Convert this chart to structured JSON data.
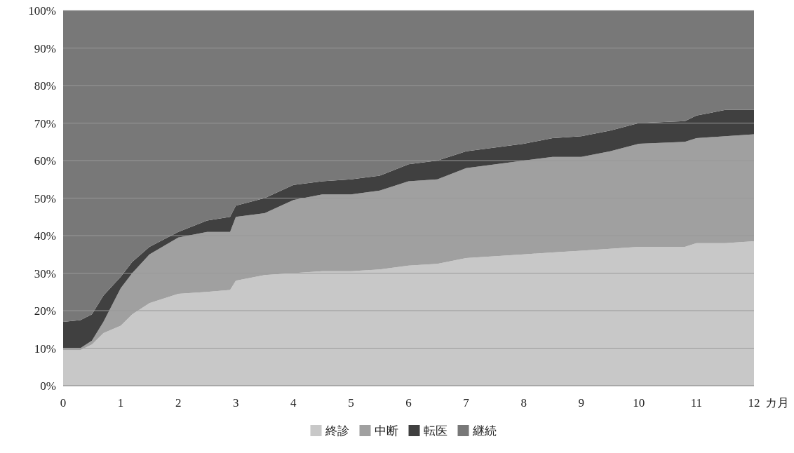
{
  "chart_data": {
    "type": "area",
    "stacked": true,
    "xlabel": "カ月",
    "x": [
      0,
      0.3,
      0.5,
      0.7,
      1,
      1.2,
      1.5,
      2,
      2.5,
      2.9,
      3,
      3.5,
      4,
      4.5,
      5,
      5.5,
      6,
      6.5,
      7,
      8,
      8.5,
      9,
      9.5,
      10,
      10.8,
      11,
      11.5,
      12
    ],
    "series": [
      {
        "name": "終診",
        "color": "#c8c8c8",
        "values": [
          9.5,
          9.5,
          11,
          14,
          16,
          19,
          22,
          24.5,
          25,
          25.5,
          28,
          29.5,
          30,
          30.5,
          30.5,
          31,
          32,
          32.5,
          34,
          35,
          35.5,
          36,
          36.5,
          37,
          37,
          38,
          38,
          38.5
        ]
      },
      {
        "name": "中断",
        "color": "#a0a0a0",
        "values": [
          0.5,
          0.5,
          1,
          3,
          10,
          11,
          13,
          15,
          16,
          15.5,
          17,
          16.5,
          19.5,
          20.5,
          20.5,
          21,
          22.5,
          22.5,
          24,
          25,
          25.5,
          25,
          26,
          27.5,
          28,
          28,
          28.5,
          28.5
        ]
      },
      {
        "name": "転医",
        "color": "#404040",
        "values": [
          7,
          7.5,
          7,
          7,
          3,
          3,
          2,
          1.5,
          3,
          4,
          3,
          4,
          4,
          3.5,
          4,
          4,
          4.5,
          5,
          4.5,
          4.5,
          5,
          5.5,
          5.5,
          5.5,
          5.5,
          6,
          7,
          6.5
        ]
      },
      {
        "name": "継続",
        "color": "#787878",
        "values": [
          83,
          82.5,
          81,
          76,
          71,
          67,
          63,
          59,
          56,
          55,
          52,
          50,
          46.5,
          45.5,
          45,
          44,
          41,
          40,
          37.5,
          35.5,
          34,
          33.5,
          32,
          30,
          29.5,
          28,
          26.5,
          26.5
        ]
      }
    ],
    "xlim": [
      0,
      12
    ],
    "xticks": [
      0,
      1,
      2,
      3,
      4,
      5,
      6,
      7,
      8,
      9,
      10,
      11,
      12
    ],
    "ylim": [
      0,
      100
    ],
    "yticks": [
      {
        "value": 0,
        "label": "0%"
      },
      {
        "value": 10,
        "label": "10%"
      },
      {
        "value": 20,
        "label": "20%"
      },
      {
        "value": 30,
        "label": "30%"
      },
      {
        "value": 40,
        "label": "40%"
      },
      {
        "value": 50,
        "label": "50%"
      },
      {
        "value": 60,
        "label": "60%"
      },
      {
        "value": 70,
        "label": "70%"
      },
      {
        "value": 80,
        "label": "80%"
      },
      {
        "value": 90,
        "label": "90%"
      },
      {
        "value": 100,
        "label": "100%"
      }
    ],
    "grid": "y",
    "legend": "bottom"
  }
}
